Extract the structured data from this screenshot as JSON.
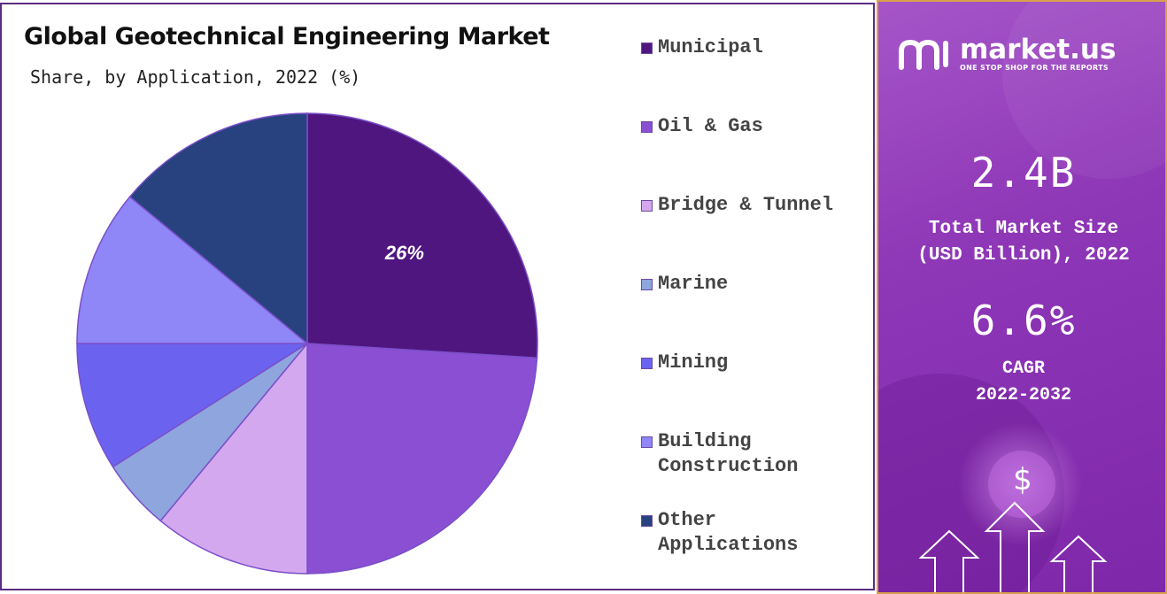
{
  "colors": {
    "municipal": "#4f1680",
    "oil_gas": "#8a4fd3",
    "bridge_tunnel": "#d4a8ee",
    "marine": "#8ea5de",
    "mining": "#6b63f0",
    "building_construction": "#8f86f8",
    "other_applications": "#27427f",
    "side_panel": "#8a2fb5"
  },
  "chart_data": {
    "type": "pie",
    "title": "Global Geotechnical Engineering Market",
    "subtitle": "Share, by Application, 2022 (%)",
    "categories": [
      "Municipal",
      "Oil & Gas",
      "Bridge & Tunnel",
      "Marine",
      "Mining",
      "Building\nConstruction",
      "Other\nApplications"
    ],
    "values": [
      26,
      24,
      11,
      5,
      9,
      11,
      14
    ],
    "data_labels": [
      "26%",
      "",
      "",
      "",
      "",
      "",
      ""
    ],
    "legend_position": "right"
  },
  "side_panel": {
    "logo_name": "market.us",
    "logo_tagline": "ONE STOP SHOP FOR THE REPORTS",
    "market_size_value": "2.4B",
    "market_size_label": "Total Market Size\n(USD Billion), 2022",
    "cagr_value": "6.6%",
    "cagr_label": "CAGR\n2022-2032",
    "dollar_symbol": "$"
  }
}
